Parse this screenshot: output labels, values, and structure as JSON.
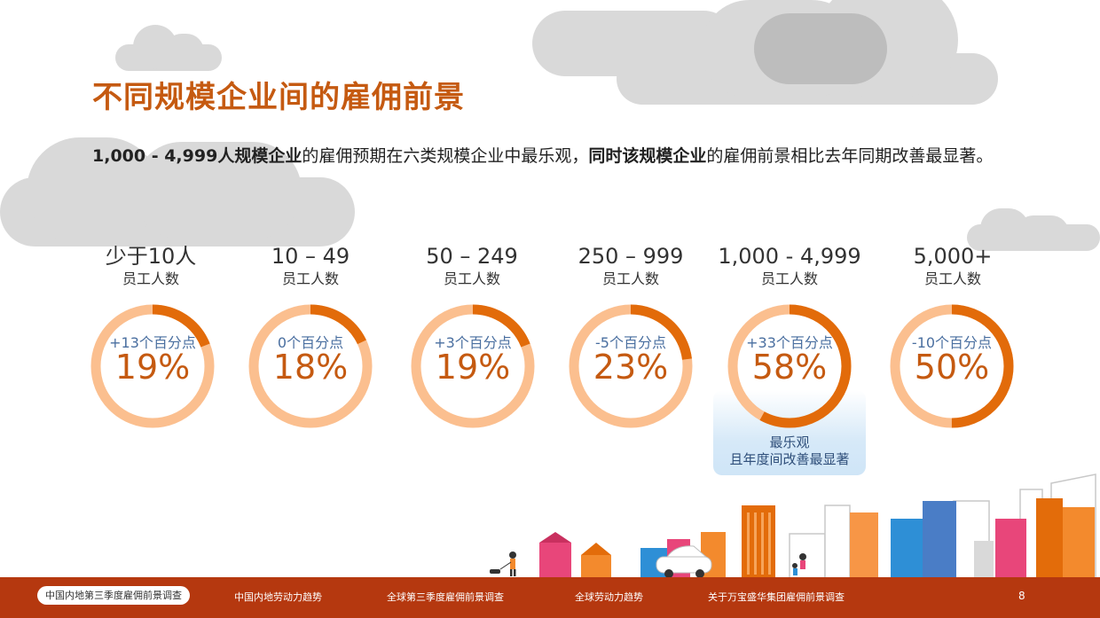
{
  "title": "不同规模企业间的雇佣前景",
  "subtitle": {
    "part1_bold": "1,000 - 4,999人规模企业",
    "part2": "的雇佣预期在六类规模企业中最乐观，",
    "part3_bold": "同时该规模企业",
    "part4": "的雇佣前景相比去年同期改善最显著。"
  },
  "colors": {
    "accent": "#c55a11",
    "ring_light": "#fbbf8f",
    "ring_dark": "#e26b0a",
    "change_text": "#4a6fa0",
    "footer": "#b5380f"
  },
  "chart_data": {
    "type": "pie",
    "categories": [
      "少于10人",
      "10 – 49",
      "50 – 249",
      "250 – 999",
      "1,000 - 4,999",
      "5,000+"
    ],
    "category_sub": "员工人数",
    "values": [
      19,
      18,
      19,
      23,
      58,
      50
    ],
    "value_labels": [
      "19%",
      "18%",
      "19%",
      "23%",
      "58%",
      "50%"
    ],
    "yoy_change_labels": [
      "+13个百分点",
      "0个百分点",
      "+3个百分点",
      "-5个百分点",
      "+33个百分点",
      "-10个百分点"
    ],
    "highlight_index": 4,
    "highlight_note": [
      "最乐观",
      "且年度间改善最显著"
    ]
  },
  "footer": {
    "nav": [
      "中国内地第三季度雇佣前景调查",
      "中国内地劳动力趋势",
      "全球第三季度雇佣前景调查",
      "全球劳动力趋势",
      "关于万宝盛华集团雇佣前景调查"
    ],
    "active_index": 0,
    "page_number": "8"
  },
  "icons": [
    "cloud-icon",
    "city-skyline-icon",
    "car-icon",
    "dog-walker-icon"
  ]
}
